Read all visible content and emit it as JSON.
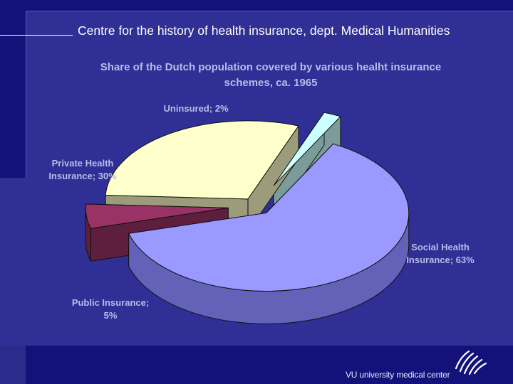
{
  "header": {
    "text": "Centre for the history of health insurance, dept. Medical Humanities"
  },
  "footer": {
    "logo_text": "VU university medical center"
  },
  "chart_data": {
    "type": "pie",
    "title": "Share of the Dutch population covered by various healht insurance schemes, ca. 1965",
    "title_lines": [
      "Share of the Dutch population covered by various healht insurance",
      "schemes, ca. 1965"
    ],
    "three_d": true,
    "exploded": true,
    "slices": [
      {
        "name": "Social Health Insurance",
        "value": 63,
        "label": "Social Health Insurance; 63%",
        "label_lines": [
          "Social Health",
          "Insurance; 63%"
        ],
        "color": "#9999ff",
        "side_color": "#6262b8"
      },
      {
        "name": "Public Insurance",
        "value": 5,
        "label": "Public Insurance; 5%",
        "label_lines": [
          "Public Insurance;",
          "5%"
        ],
        "color": "#993366",
        "side_color": "#5e1f3e"
      },
      {
        "name": "Private Health Insurance",
        "value": 30,
        "label": "Private Health Insurance; 30%",
        "label_lines": [
          "Private Health",
          "Insurance; 30%"
        ],
        "color": "#ffffcc",
        "side_color": "#9c9c7c"
      },
      {
        "name": "Uninsured",
        "value": 2,
        "label": "Uninsured; 2%",
        "label_lines": [
          "Uninsured; 2%"
        ],
        "color": "#ccffff",
        "side_color": "#7c9c9c"
      }
    ]
  }
}
